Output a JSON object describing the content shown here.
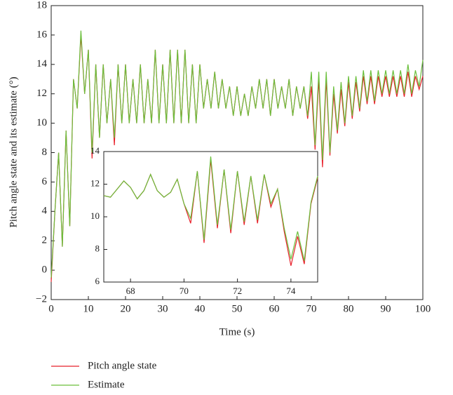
{
  "chart_data": [
    {
      "type": "line",
      "xlabel": "Time (s)",
      "ylabel": "Pitch angle state and its estimate (°)",
      "xlim": [
        0,
        100
      ],
      "ylim": [
        -2,
        18
      ],
      "xticks": [
        0,
        10,
        20,
        30,
        40,
        50,
        60,
        70,
        80,
        90,
        100
      ],
      "yticks": [
        {
          "value": -2,
          "label": "−2"
        },
        0,
        2,
        4,
        6,
        8,
        10,
        12,
        14,
        16,
        18
      ],
      "x": [
        0,
        1,
        2,
        3,
        4,
        5,
        6,
        7,
        8,
        9,
        10,
        11,
        12,
        13,
        14,
        15,
        16,
        17,
        18,
        19,
        20,
        21,
        22,
        23,
        24,
        25,
        26,
        27,
        28,
        29,
        30,
        31,
        32,
        33,
        34,
        35,
        36,
        37,
        38,
        39,
        40,
        41,
        42,
        43,
        44,
        45,
        46,
        47,
        48,
        49,
        50,
        51,
        52,
        53,
        54,
        55,
        56,
        57,
        58,
        59,
        60,
        61,
        62,
        63,
        64,
        65,
        66,
        67,
        68,
        69,
        70,
        71,
        72,
        73,
        74,
        75,
        76,
        77,
        78,
        79,
        80,
        81,
        82,
        83,
        84,
        85,
        86,
        87,
        88,
        89,
        90,
        91,
        92,
        93,
        94,
        95,
        96,
        97,
        98,
        99,
        100
      ],
      "series": [
        {
          "name": "Pitch angle state",
          "color": "#e8202a",
          "values": [
            -0.8,
            4,
            8,
            1.6,
            9.5,
            3,
            13,
            11,
            16,
            12,
            15,
            7.6,
            14,
            9,
            14,
            10,
            13,
            8.5,
            14,
            10,
            14,
            10,
            13,
            10,
            14,
            10,
            13,
            10,
            15,
            10,
            14,
            10,
            15,
            10,
            15,
            10,
            15,
            10,
            14,
            10,
            14,
            11,
            13,
            11,
            13.5,
            11,
            13,
            11,
            12.5,
            10.5,
            12.5,
            10.5,
            12,
            10.5,
            12.5,
            11,
            13,
            11,
            13,
            10.5,
            13,
            11,
            12.5,
            11,
            13,
            10.5,
            12.5,
            11,
            12.5,
            10.3,
            12.5,
            8.2,
            13,
            7,
            13,
            7.8,
            12,
            9.3,
            12.3,
            9.8,
            12.8,
            10.3,
            12.8,
            10.8,
            13.2,
            11.3,
            13.2,
            11.3,
            13.2,
            11.8,
            13.2,
            11.8,
            13.2,
            11.8,
            13.2,
            11.8,
            13.5,
            11.8,
            13.2,
            12.3,
            13.2
          ]
        },
        {
          "name": "Estimate",
          "color": "#6abf3b",
          "values": [
            -0.5,
            4,
            8,
            1.6,
            9.5,
            3,
            13,
            11,
            16.3,
            12,
            15,
            8,
            14,
            9,
            14,
            10,
            13,
            9,
            14,
            10,
            14,
            10,
            13,
            10,
            14,
            10,
            13,
            10,
            15,
            10,
            14,
            10,
            15,
            10,
            15,
            10,
            15,
            10,
            14,
            10,
            14,
            11,
            13,
            11,
            13.5,
            11,
            13,
            11,
            12.5,
            10.5,
            12.5,
            10.5,
            12,
            10.5,
            12.5,
            11,
            13,
            11,
            13,
            10.5,
            13,
            11,
            12.5,
            11,
            13,
            10.5,
            12.5,
            11,
            12.5,
            10.5,
            13.5,
            8.5,
            13.5,
            7.5,
            13.5,
            8,
            12.5,
            9.5,
            12.8,
            10,
            13.2,
            10.5,
            13.2,
            11,
            13.6,
            11.5,
            13.6,
            11.5,
            13.6,
            12,
            13.6,
            12,
            13.6,
            12,
            13.6,
            12,
            14,
            12,
            13.6,
            12.5,
            14.3
          ]
        }
      ],
      "legend": "below"
    },
    {
      "type": "line",
      "xlim": [
        67,
        75
      ],
      "ylim": [
        6,
        14
      ],
      "xticks": [
        68,
        70,
        72,
        74
      ],
      "yticks": [
        6,
        8,
        10,
        12,
        14
      ],
      "x": [
        67,
        67.25,
        67.5,
        67.75,
        68,
        68.25,
        68.5,
        68.75,
        69,
        69.25,
        69.5,
        69.75,
        70,
        70.25,
        70.5,
        70.75,
        71,
        71.25,
        71.5,
        71.75,
        72,
        72.25,
        72.5,
        72.75,
        73,
        73.25,
        73.5,
        73.75,
        74,
        74.25,
        74.5,
        74.75,
        75
      ],
      "series": [
        {
          "name": "Pitch angle state",
          "color": "#e8202a",
          "values": [
            11.3,
            11.2,
            11.7,
            12.2,
            11.8,
            11.1,
            11.6,
            12.6,
            11.6,
            11.2,
            11.5,
            12.3,
            10.8,
            9.6,
            12.8,
            8.4,
            13.5,
            9.3,
            12.9,
            9.0,
            12.8,
            9.5,
            12.5,
            9.6,
            12.6,
            10.6,
            11.7,
            9.1,
            7.0,
            8.8,
            7.1,
            10.8,
            12.4
          ]
        },
        {
          "name": "Estimate",
          "color": "#6abf3b",
          "values": [
            11.3,
            11.2,
            11.7,
            12.2,
            11.8,
            11.1,
            11.6,
            12.6,
            11.6,
            11.2,
            11.5,
            12.3,
            10.8,
            9.9,
            12.8,
            8.6,
            13.7,
            9.5,
            12.9,
            9.2,
            12.8,
            9.7,
            12.5,
            9.8,
            12.6,
            10.8,
            11.7,
            9.3,
            7.4,
            9.1,
            7.3,
            10.9,
            12.5
          ]
        }
      ]
    }
  ]
}
